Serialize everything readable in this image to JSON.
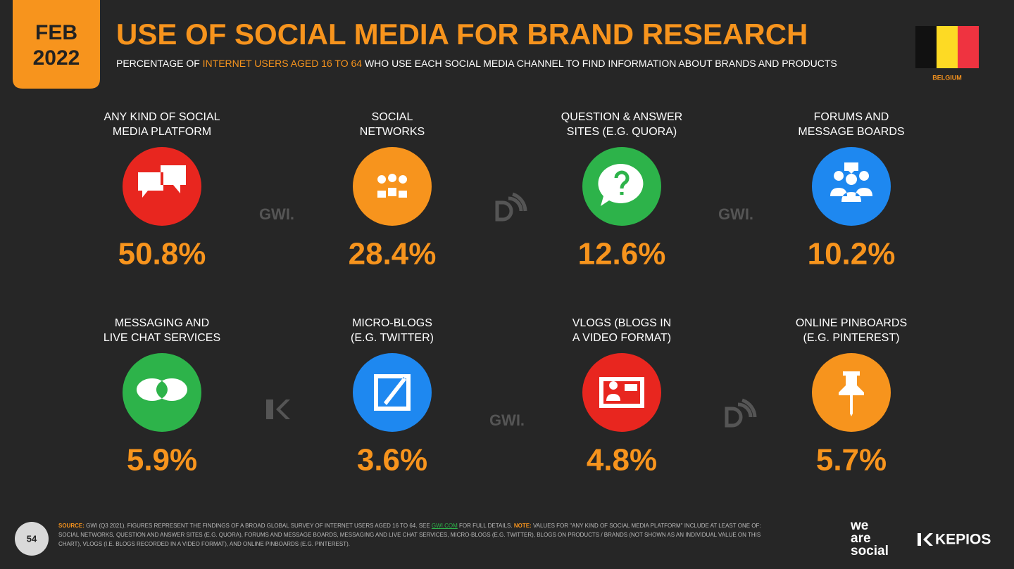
{
  "header": {
    "date_month": "FEB",
    "date_year": "2022",
    "title": "USE OF SOCIAL MEDIA FOR BRAND RESEARCH",
    "subtitle": [
      "PERCENTAGE OF ",
      "INTERNET USERS AGED 16 TO 64",
      " WHO USE EACH SOCIAL MEDIA CHANNEL TO FIND INFORMATION ABOUT BRANDS AND PRODUCTS"
    ],
    "country": "BELGIUM"
  },
  "tiles": [
    {
      "label": [
        "ANY KIND OF SOCIAL",
        "MEDIA PLATFORM"
      ],
      "value": "50.8%",
      "color": "#e8261f"
    },
    {
      "label": [
        "SOCIAL",
        "NETWORKS"
      ],
      "value": "28.4%",
      "color": "#f7941d"
    },
    {
      "label": [
        "QUESTION & ANSWER",
        "SITES (E.G. QUORA)"
      ],
      "value": "12.6%",
      "color": "#2db34a"
    },
    {
      "label": [
        "FORUMS AND",
        "MESSAGE BOARDS"
      ],
      "value": "10.2%",
      "color": "#1e88f0"
    },
    {
      "label": [
        "MESSAGING AND",
        "LIVE CHAT SERVICES"
      ],
      "value": "5.9%",
      "color": "#2db34a"
    },
    {
      "label": [
        "MICRO-BLOGS",
        "(E.G. TWITTER)"
      ],
      "value": "3.6%",
      "color": "#1e88f0"
    },
    {
      "label": [
        "VLOGS (BLOGS IN",
        "A VIDEO FORMAT)"
      ],
      "value": "4.8%",
      "color": "#e8261f"
    },
    {
      "label": [
        "ONLINE PINBOARDS",
        "(E.G. PINTEREST)"
      ],
      "value": "5.7%",
      "color": "#f7941d"
    }
  ],
  "watermarks": [
    "GWI.",
    "GWI.",
    "GWI."
  ],
  "footer": {
    "page": "54",
    "source_label": "SOURCE:",
    "source_text": " GWI (Q3 2021). FIGURES REPRESENT THE FINDINGS OF A BROAD GLOBAL SURVEY OF INTERNET USERS AGED 16 TO 64. SEE ",
    "link": "GWI.COM",
    "source_end": " FOR FULL DETAILS. ",
    "note_label": "NOTE:",
    "note_text": " VALUES FOR \"ANY KIND OF SOCIAL MEDIA PLATFORM\" INCLUDE AT LEAST ONE OF: SOCIAL NETWORKS, QUESTION AND ANSWER SITES (E.G. QUORA), FORUMS AND MESSAGE BOARDS, MESSAGING AND LIVE CHAT SERVICES, MICRO-BLOGS (E.G. TWITTER), BLOGS ON PRODUCTS / BRANDS (NOT SHOWN AS AN INDIVIDUAL VALUE ON THIS CHART), VLOGS (I.E. BLOGS RECORDED IN A VIDEO FORMAT), AND ONLINE PINBOARDS (E.G. PINTEREST).",
    "logo_we_are_social": [
      "we",
      "are",
      "social"
    ],
    "logo_kepios": "KEPIOS"
  }
}
